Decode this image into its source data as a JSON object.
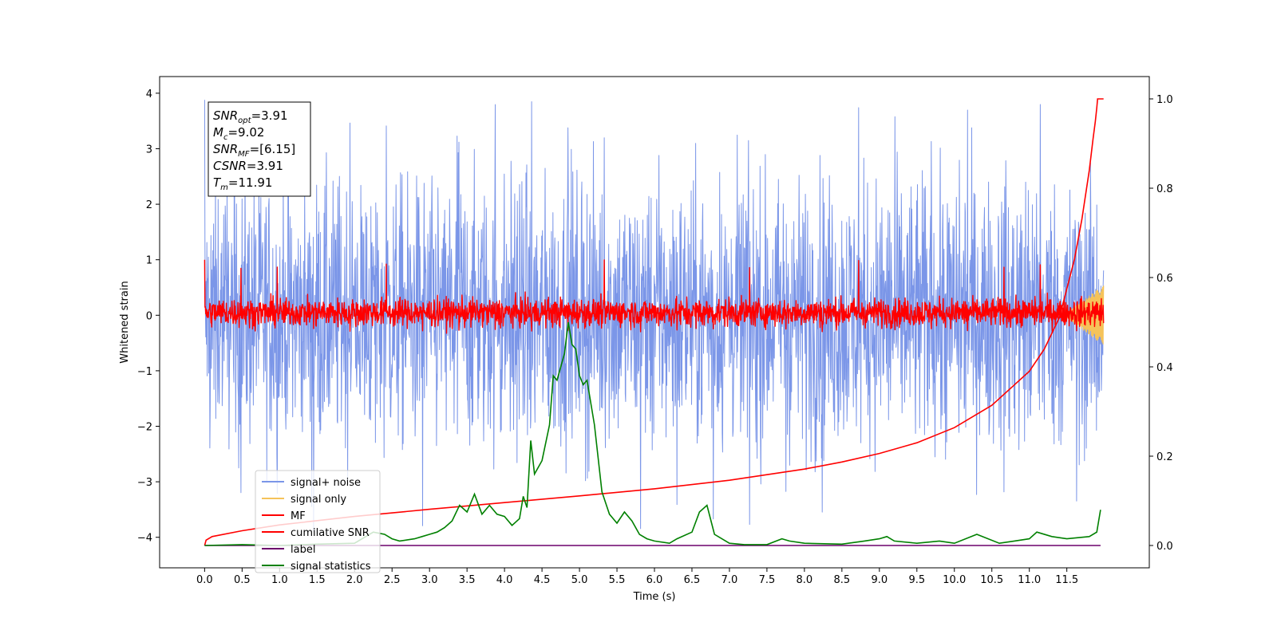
{
  "chart_data": {
    "type": "line",
    "xlabel": "Time (s)",
    "ylabel": "Whitened strain",
    "xlim": [
      -0.6,
      12.6
    ],
    "ylim": [
      -4.55,
      4.3
    ],
    "y2lim": [
      -0.05,
      1.05
    ],
    "x_ticks": [
      0.0,
      0.5,
      1.0,
      1.5,
      2.0,
      2.5,
      3.0,
      3.5,
      4.0,
      4.5,
      5.0,
      5.5,
      6.0,
      6.5,
      7.0,
      7.5,
      8.0,
      8.5,
      9.0,
      9.5,
      10.0,
      10.5,
      11.0,
      11.5
    ],
    "x_tick_labels": [
      "0.0",
      "0.5",
      "1.0",
      "1.5",
      "2.0",
      "2.5",
      "3.0",
      "3.5",
      "4.0",
      "4.5",
      "5.0",
      "5.5",
      "6.0",
      "6.5",
      "7.0",
      "7.5",
      "8.0",
      "8.5",
      "9.0",
      "9.5",
      "10.0",
      "10.5",
      "11.0",
      "11.5"
    ],
    "y_ticks": [
      -4,
      -3,
      -2,
      -1,
      0,
      1,
      2,
      3,
      4
    ],
    "y_tick_labels": [
      "−4",
      "−3",
      "−2",
      "−1",
      "0",
      "1",
      "2",
      "3",
      "4"
    ],
    "y2_ticks": [
      0.0,
      0.2,
      0.4,
      0.6,
      0.8,
      1.0
    ],
    "y2_tick_labels": [
      "0.0",
      "0.2",
      "0.4",
      "0.6",
      "0.8",
      "1.0"
    ],
    "info_box": [
      {
        "main": "SNR",
        "sub": "opt",
        "value": "=3.91"
      },
      {
        "main": "M",
        "sub": "c",
        "value": "=9.02"
      },
      {
        "main": "SNR",
        "sub": "MF",
        "value": "=[6.15]"
      },
      {
        "main": "CSNR",
        "sub": "",
        "value": "=3.91"
      },
      {
        "main": "T",
        "sub": "m",
        "value": "=11.91"
      }
    ],
    "series": [
      {
        "name": "signal+ noise",
        "color": "#7b96e8",
        "axis": "left",
        "kind": "noise",
        "x_range": [
          0.0,
          11.99
        ],
        "typical_range": [
          -2.2,
          2.2
        ],
        "extremes": [
          -3.95,
          3.88
        ]
      },
      {
        "name": "signal only",
        "color": "#f5c35a",
        "axis": "left",
        "kind": "chirp",
        "x_range": [
          11.5,
          11.99
        ],
        "typical_range": [
          -0.6,
          0.5
        ]
      },
      {
        "name": "MF",
        "color": "#ff0000",
        "axis": "left",
        "kind": "noise",
        "x_range": [
          0.0,
          11.99
        ],
        "typical_range": [
          -0.25,
          0.35
        ],
        "extremes": [
          -0.3,
          1.0
        ]
      },
      {
        "name": "cumilative SNR",
        "color": "#ff0000",
        "axis": "right",
        "x": [
          0.0,
          0.02,
          0.1,
          0.5,
          1.0,
          2.0,
          3.0,
          4.0,
          5.0,
          6.0,
          7.0,
          8.0,
          8.5,
          9.0,
          9.5,
          10.0,
          10.5,
          11.0,
          11.2,
          11.4,
          11.6,
          11.7,
          11.8,
          11.85,
          11.88,
          11.9,
          11.91,
          11.99
        ],
        "y": [
          0.0,
          0.012,
          0.02,
          0.033,
          0.046,
          0.065,
          0.081,
          0.096,
          0.111,
          0.127,
          0.146,
          0.171,
          0.187,
          0.206,
          0.23,
          0.264,
          0.314,
          0.39,
          0.44,
          0.51,
          0.64,
          0.73,
          0.84,
          0.91,
          0.95,
          0.98,
          1.0,
          1.0
        ]
      },
      {
        "name": "label",
        "color": "#6b006b",
        "axis": "right",
        "x": [
          0.0,
          11.95
        ],
        "y": [
          0.0,
          0.0
        ]
      },
      {
        "name": "signal statistics",
        "color": "#008000",
        "axis": "right",
        "x": [
          0.0,
          0.5,
          1.0,
          1.5,
          2.0,
          2.15,
          2.25,
          2.4,
          2.5,
          2.6,
          2.8,
          2.9,
          3.0,
          3.1,
          3.2,
          3.3,
          3.4,
          3.5,
          3.6,
          3.7,
          3.8,
          3.9,
          4.0,
          4.1,
          4.2,
          4.25,
          4.3,
          4.35,
          4.4,
          4.5,
          4.6,
          4.65,
          4.7,
          4.75,
          4.8,
          4.85,
          4.9,
          4.95,
          5.0,
          5.05,
          5.1,
          5.2,
          5.3,
          5.4,
          5.45,
          5.5,
          5.6,
          5.7,
          5.8,
          5.9,
          6.0,
          6.2,
          6.3,
          6.5,
          6.6,
          6.7,
          6.8,
          7.0,
          7.2,
          7.5,
          7.7,
          7.8,
          8.0,
          8.5,
          8.8,
          9.0,
          9.1,
          9.2,
          9.5,
          9.8,
          10.0,
          10.3,
          10.6,
          10.8,
          11.0,
          11.1,
          11.3,
          11.5,
          11.8,
          11.9,
          11.95
        ],
        "y": [
          0.0,
          0.002,
          0.0,
          0.003,
          0.005,
          0.02,
          0.03,
          0.025,
          0.015,
          0.01,
          0.015,
          0.02,
          0.025,
          0.03,
          0.04,
          0.055,
          0.09,
          0.075,
          0.115,
          0.07,
          0.09,
          0.07,
          0.065,
          0.045,
          0.06,
          0.11,
          0.085,
          0.235,
          0.16,
          0.19,
          0.27,
          0.38,
          0.37,
          0.4,
          0.43,
          0.5,
          0.45,
          0.44,
          0.38,
          0.36,
          0.37,
          0.27,
          0.12,
          0.07,
          0.06,
          0.05,
          0.075,
          0.055,
          0.025,
          0.015,
          0.01,
          0.005,
          0.015,
          0.03,
          0.075,
          0.09,
          0.025,
          0.005,
          0.002,
          0.002,
          0.015,
          0.01,
          0.005,
          0.003,
          0.01,
          0.015,
          0.02,
          0.01,
          0.005,
          0.01,
          0.005,
          0.025,
          0.005,
          0.01,
          0.015,
          0.03,
          0.02,
          0.015,
          0.02,
          0.03,
          0.08
        ]
      }
    ]
  }
}
